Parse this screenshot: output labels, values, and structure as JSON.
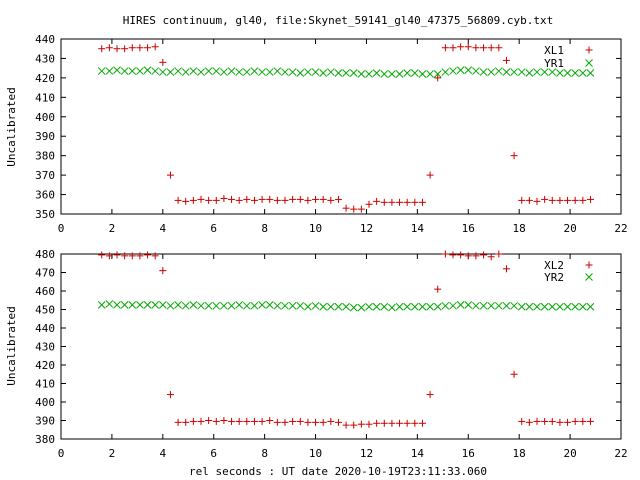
{
  "title": "HIRES continuum, gl40, file:Skynet_59141_gl40_47375_56809.cyb.txt",
  "xlabel": "rel seconds : UT date 2020-10-19T23:11:33.060",
  "colors": {
    "red": "#cc0000",
    "green": "#00aa00",
    "axis": "#000000"
  },
  "chart_data": [
    {
      "type": "scatter",
      "title": "",
      "xlabel": "",
      "ylabel": "Uncalibrated",
      "xlim": [
        0,
        22
      ],
      "ylim": [
        350,
        440
      ],
      "xticks": [
        0,
        2,
        4,
        6,
        8,
        10,
        12,
        14,
        16,
        18,
        20,
        22
      ],
      "yticks": [
        350,
        360,
        370,
        380,
        390,
        400,
        410,
        420,
        430,
        440
      ],
      "legend_position": "top-right",
      "grid": false,
      "series": [
        {
          "name": "XL1",
          "marker": "plus",
          "color": "#cc0000",
          "x": [
            1.6,
            1.9,
            2.2,
            2.5,
            2.8,
            3.1,
            3.4,
            3.7,
            4.0,
            4.3,
            4.6,
            4.9,
            5.2,
            5.5,
            5.8,
            6.1,
            6.4,
            6.7,
            7.0,
            7.3,
            7.6,
            7.9,
            8.2,
            8.5,
            8.8,
            9.1,
            9.4,
            9.7,
            10.0,
            10.3,
            10.6,
            10.9,
            11.2,
            11.5,
            11.8,
            12.1,
            12.4,
            12.7,
            13.0,
            13.3,
            13.6,
            13.9,
            14.2,
            14.5,
            14.8,
            15.1,
            15.4,
            15.7,
            16.0,
            16.3,
            16.6,
            16.9,
            17.2,
            17.5,
            17.8,
            18.1,
            18.4,
            18.7,
            19.0,
            19.3,
            19.6,
            19.9,
            20.2,
            20.5,
            20.8
          ],
          "y": [
            435,
            435.5,
            435,
            435,
            435.5,
            435.5,
            435.5,
            436,
            428,
            370,
            357,
            356.5,
            357,
            357.5,
            357,
            357,
            358,
            357.5,
            357,
            357.5,
            357,
            357.5,
            357.5,
            357,
            357,
            357.5,
            357.5,
            357,
            357.5,
            357.5,
            357,
            357.5,
            353,
            352.5,
            352.5,
            355,
            356.5,
            356,
            356,
            356,
            356,
            356,
            356,
            370,
            420,
            435.5,
            435.5,
            436,
            436,
            435.5,
            435.5,
            435.5,
            435.5,
            429,
            380,
            357,
            357,
            356.5,
            357.5,
            357,
            357,
            357,
            357,
            357,
            357.5
          ]
        },
        {
          "name": "YR1",
          "marker": "x",
          "color": "#00aa00",
          "x": [
            1.6,
            1.9,
            2.2,
            2.5,
            2.8,
            3.1,
            3.4,
            3.7,
            4.0,
            4.3,
            4.6,
            4.9,
            5.2,
            5.5,
            5.8,
            6.1,
            6.4,
            6.7,
            7.0,
            7.3,
            7.6,
            7.9,
            8.2,
            8.5,
            8.8,
            9.1,
            9.4,
            9.7,
            10.0,
            10.3,
            10.6,
            10.9,
            11.2,
            11.5,
            11.8,
            12.1,
            12.4,
            12.7,
            13.0,
            13.3,
            13.6,
            13.9,
            14.2,
            14.5,
            14.8,
            15.1,
            15.4,
            15.7,
            16.0,
            16.3,
            16.6,
            16.9,
            17.2,
            17.5,
            17.8,
            18.1,
            18.4,
            18.7,
            19.0,
            19.3,
            19.6,
            19.9,
            20.2,
            20.5,
            20.8
          ],
          "y": [
            423.5,
            423.5,
            424,
            423.5,
            423.5,
            423.5,
            424,
            423.5,
            423,
            423,
            423.5,
            423,
            423.5,
            423,
            423.5,
            423.5,
            423,
            423.5,
            423,
            423,
            423.5,
            423,
            423,
            423.5,
            423,
            423,
            422.5,
            423,
            423,
            422.5,
            423,
            422.5,
            422.5,
            422.5,
            422,
            422,
            422.5,
            422,
            422,
            422,
            422.5,
            422.5,
            422,
            422,
            422,
            423,
            423.5,
            424,
            424,
            423.5,
            423,
            423,
            423.5,
            423,
            423,
            423,
            422.5,
            423,
            423,
            423,
            422.5,
            422.5,
            422.5,
            422.5,
            422.5
          ]
        }
      ]
    },
    {
      "type": "scatter",
      "title": "",
      "xlabel": "rel seconds : UT date 2020-10-19T23:11:33.060",
      "ylabel": "Uncalibrated",
      "xlim": [
        0,
        22
      ],
      "ylim": [
        380,
        480
      ],
      "xticks": [
        0,
        2,
        4,
        6,
        8,
        10,
        12,
        14,
        16,
        18,
        20,
        22
      ],
      "yticks": [
        380,
        390,
        400,
        410,
        420,
        430,
        440,
        450,
        460,
        470,
        480
      ],
      "legend_position": "top-right",
      "grid": false,
      "series": [
        {
          "name": "XL2",
          "marker": "plus",
          "color": "#cc0000",
          "x": [
            1.6,
            1.9,
            2.2,
            2.5,
            2.8,
            3.1,
            3.4,
            3.7,
            4.0,
            4.3,
            4.6,
            4.9,
            5.2,
            5.5,
            5.8,
            6.1,
            6.4,
            6.7,
            7.0,
            7.3,
            7.6,
            7.9,
            8.2,
            8.5,
            8.8,
            9.1,
            9.4,
            9.7,
            10.0,
            10.3,
            10.6,
            10.9,
            11.2,
            11.5,
            11.8,
            12.1,
            12.4,
            12.7,
            13.0,
            13.3,
            13.6,
            13.9,
            14.2,
            14.5,
            14.8,
            15.1,
            15.4,
            15.7,
            16.0,
            16.3,
            16.6,
            16.9,
            17.2,
            17.5,
            17.8,
            18.1,
            18.4,
            18.7,
            19.0,
            19.3,
            19.6,
            19.9,
            20.2,
            20.5,
            20.8
          ],
          "y": [
            479.5,
            479,
            479.5,
            479,
            479,
            479,
            479.5,
            479,
            471,
            404,
            389,
            389,
            389.5,
            389.5,
            390,
            389.5,
            390,
            389.5,
            389.5,
            389.5,
            389.5,
            389.5,
            390,
            389,
            389,
            389.5,
            389.5,
            389,
            389,
            389,
            389.5,
            389,
            387.5,
            387.5,
            388,
            388,
            388.5,
            388.5,
            388.5,
            388.5,
            388.5,
            388.5,
            388.5,
            404,
            461,
            480,
            479.5,
            479.5,
            479,
            479,
            479.5,
            478.5,
            480,
            472,
            415,
            389.5,
            389,
            389.5,
            389.5,
            389.5,
            389,
            389,
            389.5,
            389.5,
            389.5
          ]
        },
        {
          "name": "YR2",
          "marker": "x",
          "color": "#00aa00",
          "x": [
            1.6,
            1.9,
            2.2,
            2.5,
            2.8,
            3.1,
            3.4,
            3.7,
            4.0,
            4.3,
            4.6,
            4.9,
            5.2,
            5.5,
            5.8,
            6.1,
            6.4,
            6.7,
            7.0,
            7.3,
            7.6,
            7.9,
            8.2,
            8.5,
            8.8,
            9.1,
            9.4,
            9.7,
            10.0,
            10.3,
            10.6,
            10.9,
            11.2,
            11.5,
            11.8,
            12.1,
            12.4,
            12.7,
            13.0,
            13.3,
            13.6,
            13.9,
            14.2,
            14.5,
            14.8,
            15.1,
            15.4,
            15.7,
            16.0,
            16.3,
            16.6,
            16.9,
            17.2,
            17.5,
            17.8,
            18.1,
            18.4,
            18.7,
            19.0,
            19.3,
            19.6,
            19.9,
            20.2,
            20.5,
            20.8
          ],
          "y": [
            452.5,
            453,
            452.5,
            452.5,
            452.5,
            452.5,
            452.5,
            452.5,
            452.5,
            452,
            452.5,
            452,
            452.5,
            452,
            452,
            452,
            452,
            452,
            452.5,
            452,
            452,
            452.5,
            452.5,
            452,
            452,
            452,
            452,
            451.5,
            452,
            451.5,
            451.5,
            451.5,
            451.5,
            451,
            451,
            451.5,
            451.5,
            451.5,
            451,
            451.5,
            451.5,
            451.5,
            451.5,
            451.5,
            451.5,
            452,
            452,
            452.5,
            452.5,
            452,
            452,
            452,
            452,
            452,
            452,
            451.5,
            451.5,
            451.5,
            451.5,
            451.5,
            451.5,
            451.5,
            451.5,
            451.5,
            451.5
          ]
        }
      ]
    }
  ]
}
